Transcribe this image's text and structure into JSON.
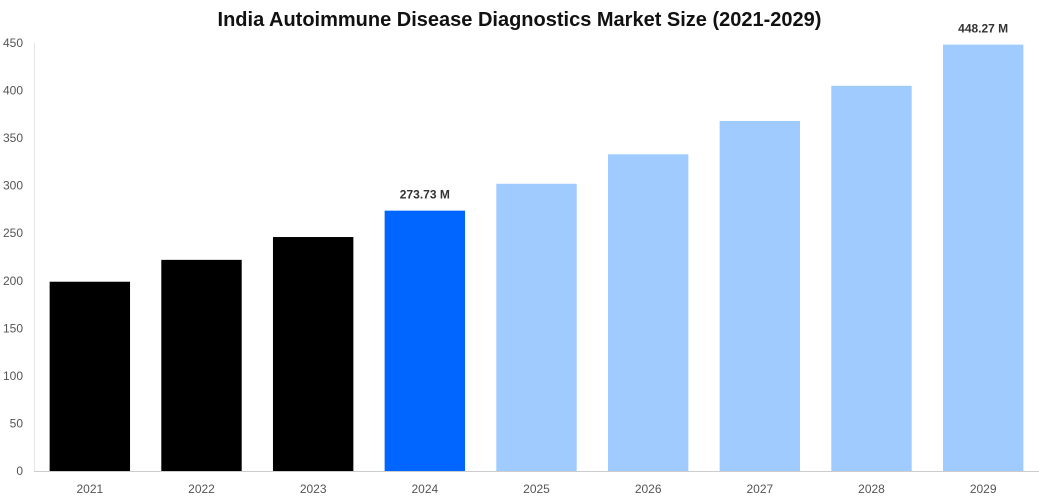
{
  "chart_data": {
    "type": "bar",
    "title": "India Autoimmune Disease Diagnostics Market Size (2021-2029)",
    "xlabel": "",
    "ylabel": "",
    "categories": [
      "2021",
      "2022",
      "2023",
      "2024",
      "2025",
      "2026",
      "2027",
      "2028",
      "2029"
    ],
    "values": [
      199,
      222,
      246,
      273.73,
      302,
      333,
      368,
      405,
      448.27
    ],
    "bar_colors": [
      "#000000",
      "#000000",
      "#000000",
      "#0066ff",
      "#a0cbff",
      "#a0cbff",
      "#a0cbff",
      "#a0cbff",
      "#a0cbff"
    ],
    "data_labels": [
      {
        "index": 3,
        "text": "273.73 M"
      },
      {
        "index": 8,
        "text": "448.27 M"
      }
    ],
    "ylim": [
      0,
      450
    ],
    "yticks": [
      0,
      50,
      100,
      150,
      200,
      250,
      300,
      350,
      400,
      450
    ],
    "grid": false,
    "legend": "none"
  }
}
